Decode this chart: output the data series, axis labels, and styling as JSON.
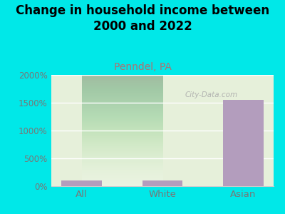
{
  "title": "Change in household income between\n2000 and 2022",
  "subtitle": "Penndel, PA",
  "categories": [
    "All",
    "White",
    "Asian"
  ],
  "values": [
    100,
    100,
    1550
  ],
  "bar_color": "#b39dbd",
  "background_color": "#00e8e8",
  "plot_bg_color": "#e6f0da",
  "title_fontsize": 12,
  "title_fontweight": "bold",
  "subtitle_fontsize": 10,
  "subtitle_color": "#b07070",
  "tick_label_color": "#777777",
  "ylim": [
    0,
    2000
  ],
  "yticks": [
    0,
    500,
    1000,
    1500,
    2000
  ],
  "ytick_labels": [
    "0%",
    "500%",
    "1000%",
    "1500%",
    "2000%"
  ],
  "watermark": "City-Data.com",
  "watermark_color": "#aaaaaa"
}
